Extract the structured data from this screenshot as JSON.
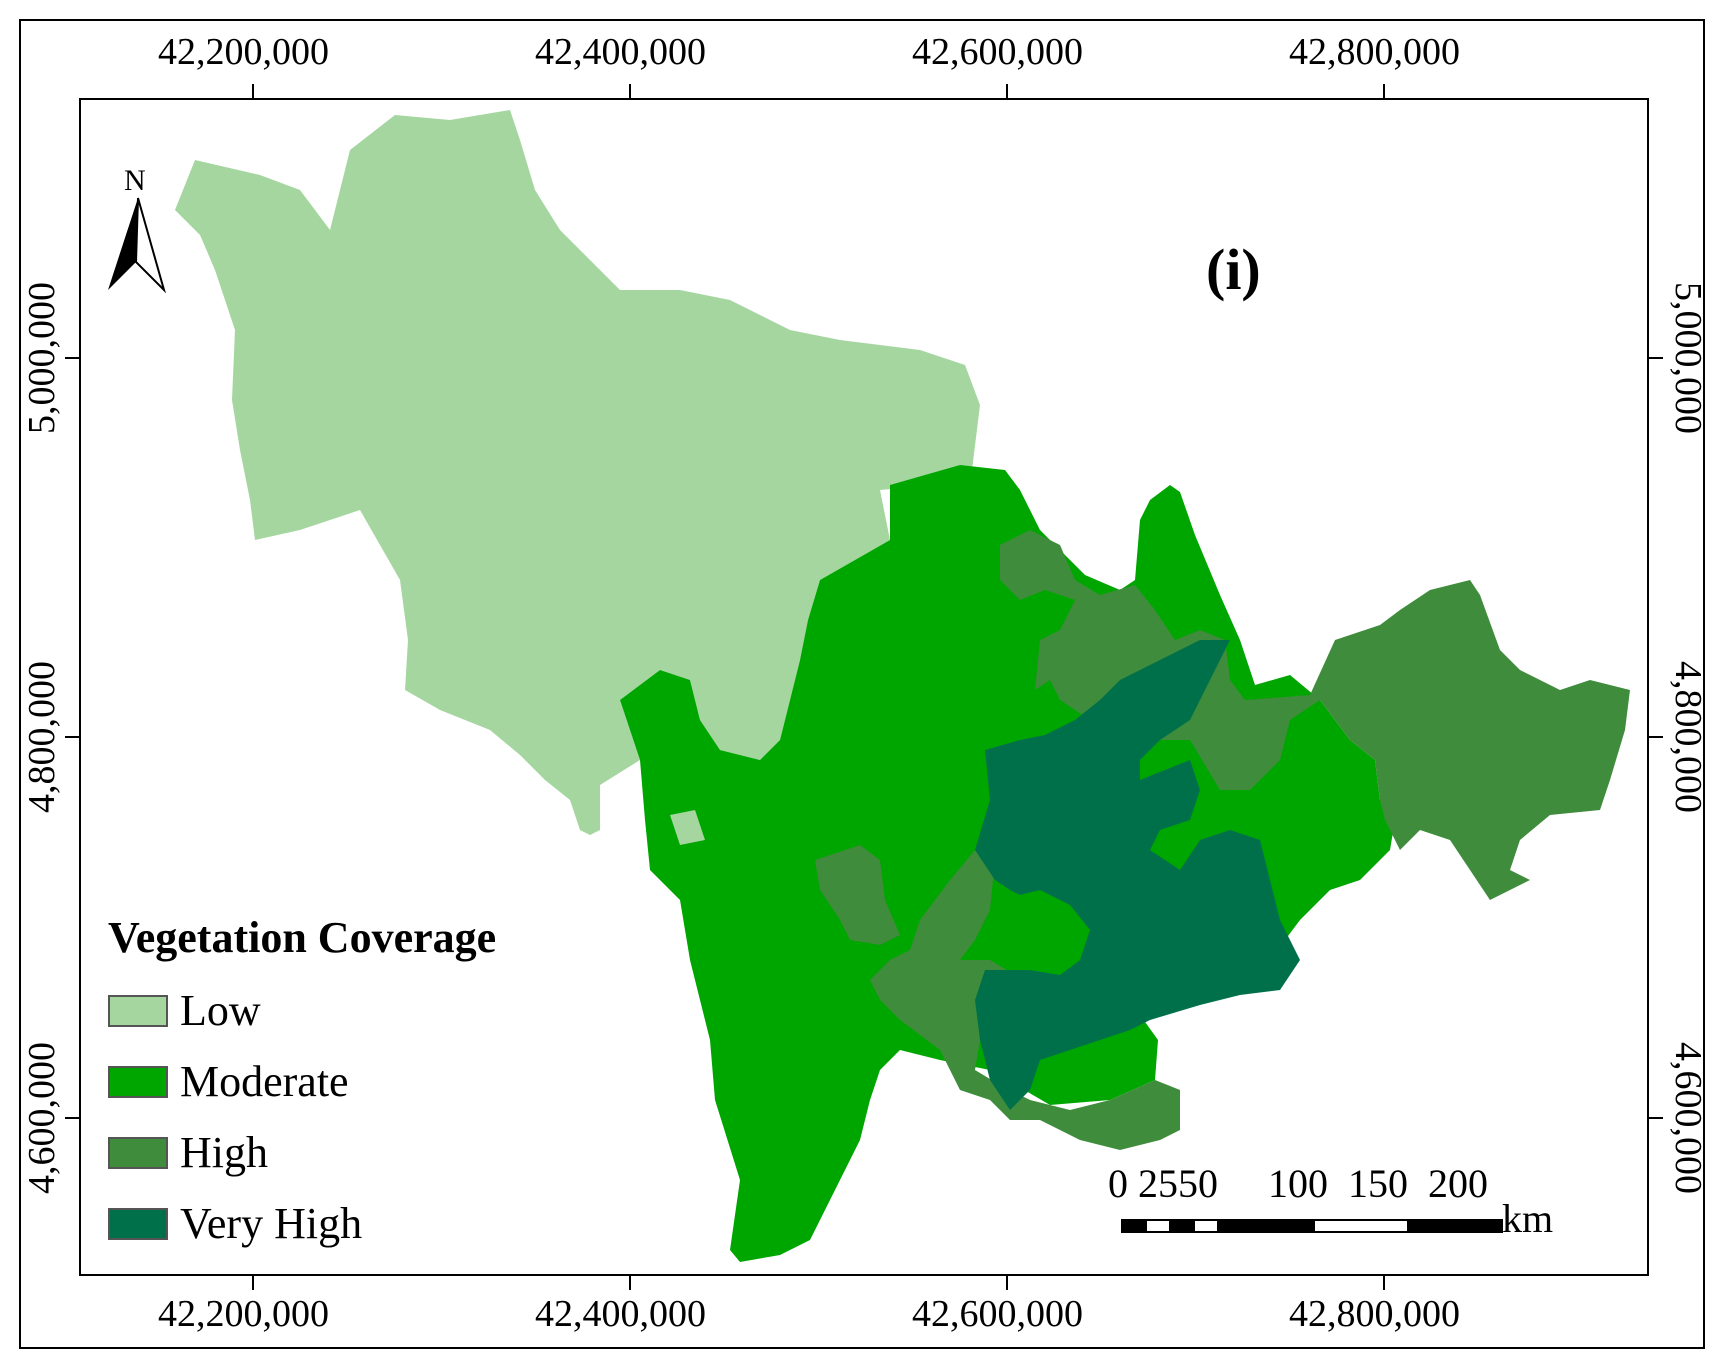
{
  "panel_label": "(i)",
  "north_label": "N",
  "axes": {
    "x_ticks": [
      "42,200,000",
      "42,400,000",
      "42,600,000",
      "42,800,000"
    ],
    "y_ticks": [
      "5,000,000",
      "4,800,000",
      "4,600,000"
    ]
  },
  "legend": {
    "title": "Vegetation Coverage",
    "items": [
      {
        "label": "Low",
        "color": "#a5d6a0"
      },
      {
        "label": "Moderate",
        "color": "#00a600"
      },
      {
        "label": "High",
        "color": "#3e8c3c"
      },
      {
        "label": "Very High",
        "color": "#00704a"
      }
    ]
  },
  "scale_bar": {
    "labels": "0 2550     100  150  200",
    "unit": "km"
  }
}
